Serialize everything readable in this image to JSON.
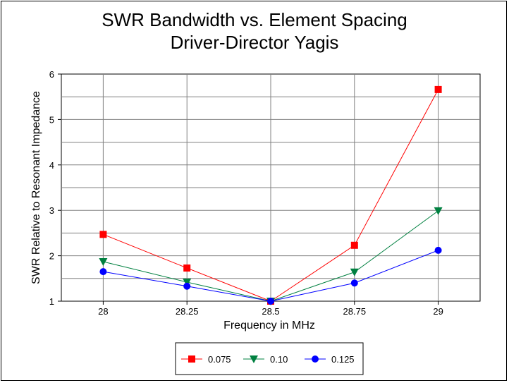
{
  "chart_data": {
    "type": "line",
    "title": [
      "SWR Bandwidth vs. Element Spacing",
      "Driver-Director Yagis"
    ],
    "xlabel": "Frequency in MHz",
    "ylabel": "SWR Relative to Resonant Impedance",
    "x": [
      28,
      28.25,
      28.5,
      28.75,
      29
    ],
    "x_tick_labels": [
      "28",
      "28.25",
      "28.5",
      "28.75",
      "29"
    ],
    "xlim": [
      27.875,
      29.125
    ],
    "ylim": [
      1,
      6
    ],
    "y_ticks": [
      1,
      2,
      3,
      4,
      5,
      6
    ],
    "y_grid_step": 0.5,
    "grid": true,
    "legend_placement": "bottom",
    "series": [
      {
        "name": "0.075",
        "color": "#ff0000",
        "marker": "square",
        "values": [
          2.47,
          1.73,
          1.0,
          2.23,
          5.66
        ]
      },
      {
        "name": "0.10",
        "color": "#008040",
        "marker": "triangle-down",
        "values": [
          1.87,
          1.42,
          1.0,
          1.64,
          2.99
        ]
      },
      {
        "name": "0.125",
        "color": "#0000ff",
        "marker": "circle",
        "values": [
          1.65,
          1.33,
          1.0,
          1.4,
          2.12
        ]
      }
    ]
  }
}
